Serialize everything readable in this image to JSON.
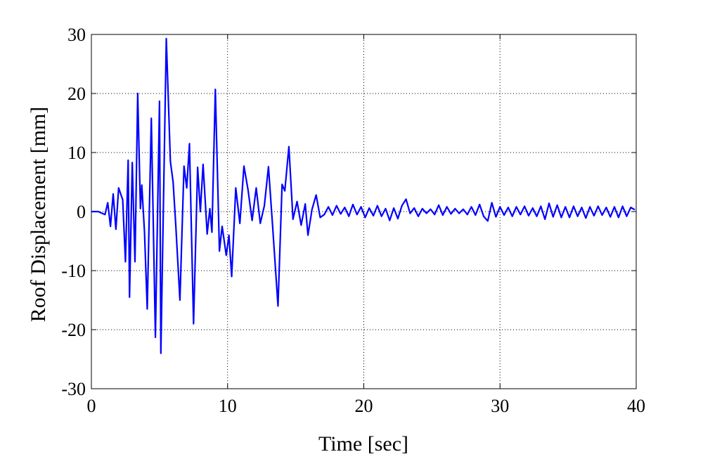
{
  "chart_data": {
    "type": "line",
    "x_label": "Time [sec]",
    "y_label": "Roof Displacement [mm]",
    "color": "#0000ff",
    "grid": true,
    "xlim": [
      0,
      40
    ],
    "xticks": [
      0,
      10,
      20,
      30,
      40
    ],
    "ylim": [
      -30,
      30
    ],
    "yticks": [
      -30,
      -20,
      -10,
      0,
      10,
      20,
      30
    ],
    "x": [
      0,
      0.5,
      1.0,
      1.2,
      1.4,
      1.6,
      1.8,
      2.0,
      2.3,
      2.5,
      2.7,
      2.8,
      3.0,
      3.2,
      3.4,
      3.6,
      3.7,
      3.9,
      4.1,
      4.4,
      4.7,
      5.0,
      5.1,
      5.5,
      5.8,
      6.0,
      6.2,
      6.5,
      6.8,
      7.0,
      7.2,
      7.5,
      7.8,
      8.0,
      8.2,
      8.5,
      8.7,
      8.85,
      9.1,
      9.4,
      9.6,
      9.9,
      10.1,
      10.3,
      10.6,
      10.9,
      11.2,
      11.5,
      11.8,
      12.1,
      12.4,
      12.7,
      13.0,
      13.3,
      13.7,
      14.0,
      14.2,
      14.5,
      14.8,
      15.1,
      15.4,
      15.7,
      15.9,
      16.2,
      16.5,
      16.8,
      17.1,
      17.4,
      17.7,
      18.0,
      18.3,
      18.6,
      18.9,
      19.2,
      19.5,
      19.8,
      20.1,
      20.4,
      20.7,
      21.0,
      21.3,
      21.6,
      21.9,
      22.2,
      22.5,
      22.8,
      23.1,
      23.4,
      23.7,
      24.0,
      24.3,
      24.6,
      24.9,
      25.2,
      25.5,
      25.8,
      26.1,
      26.4,
      26.7,
      27.0,
      27.3,
      27.6,
      27.9,
      28.2,
      28.5,
      28.8,
      29.1,
      29.4,
      29.7,
      30.0,
      30.3,
      30.6,
      30.9,
      31.2,
      31.5,
      31.8,
      32.1,
      32.4,
      32.7,
      33.0,
      33.3,
      33.6,
      33.9,
      34.2,
      34.5,
      34.8,
      35.1,
      35.4,
      35.7,
      36.0,
      36.3,
      36.6,
      36.9,
      37.2,
      37.5,
      37.8,
      38.1,
      38.4,
      38.7,
      39.0,
      39.3,
      39.6,
      39.9
    ],
    "values": [
      0,
      0,
      -0.5,
      1.5,
      -2.5,
      3,
      -3,
      4,
      2,
      -8.5,
      8.7,
      -14.5,
      8.3,
      -8.5,
      20,
      0.5,
      4.5,
      -3.5,
      -16.5,
      15.8,
      -21.3,
      18.7,
      -24,
      29.3,
      8.5,
      5,
      -2.5,
      -15,
      7.7,
      4,
      11.5,
      -19,
      7.5,
      0,
      8,
      -3.8,
      0.5,
      -3.5,
      20.7,
      -6.7,
      -2.5,
      -7.4,
      -4,
      -11,
      4,
      -2,
      7.7,
      3.7,
      -1.5,
      4,
      -2,
      1,
      7.6,
      -2.3,
      -16,
      4.6,
      3.5,
      11,
      -1.3,
      1.7,
      -2.3,
      1.3,
      -4,
      0.4,
      2.8,
      -1,
      -0.5,
      0.8,
      -0.6,
      1.0,
      -0.4,
      0.7,
      -0.8,
      1.2,
      -0.5,
      0.8,
      -1.0,
      0.6,
      -0.7,
      1.0,
      -0.8,
      0.5,
      -1.5,
      0.6,
      -1.2,
      1.0,
      2.1,
      -0.3,
      0.6,
      -0.8,
      0.5,
      -0.3,
      0.4,
      -0.5,
      1.1,
      -0.6,
      0.8,
      -0.4,
      0.5,
      -0.3,
      0.4,
      -0.5,
      0.8,
      -0.6,
      1.2,
      -0.8,
      -1.6,
      1.5,
      -0.9,
      0.8,
      -0.6,
      0.7,
      -0.8,
      0.8,
      -0.5,
      0.9,
      -0.7,
      0.6,
      -0.8,
      0.9,
      -1.3,
      1.4,
      -0.9,
      1.1,
      -1.0,
      0.8,
      -1.0,
      0.9,
      -0.8,
      0.7,
      -1.1,
      0.8,
      -0.7,
      0.9,
      -0.6,
      0.7,
      -0.9,
      0.8,
      -1.0,
      0.9,
      -0.8,
      0.7,
      0.3
    ]
  }
}
